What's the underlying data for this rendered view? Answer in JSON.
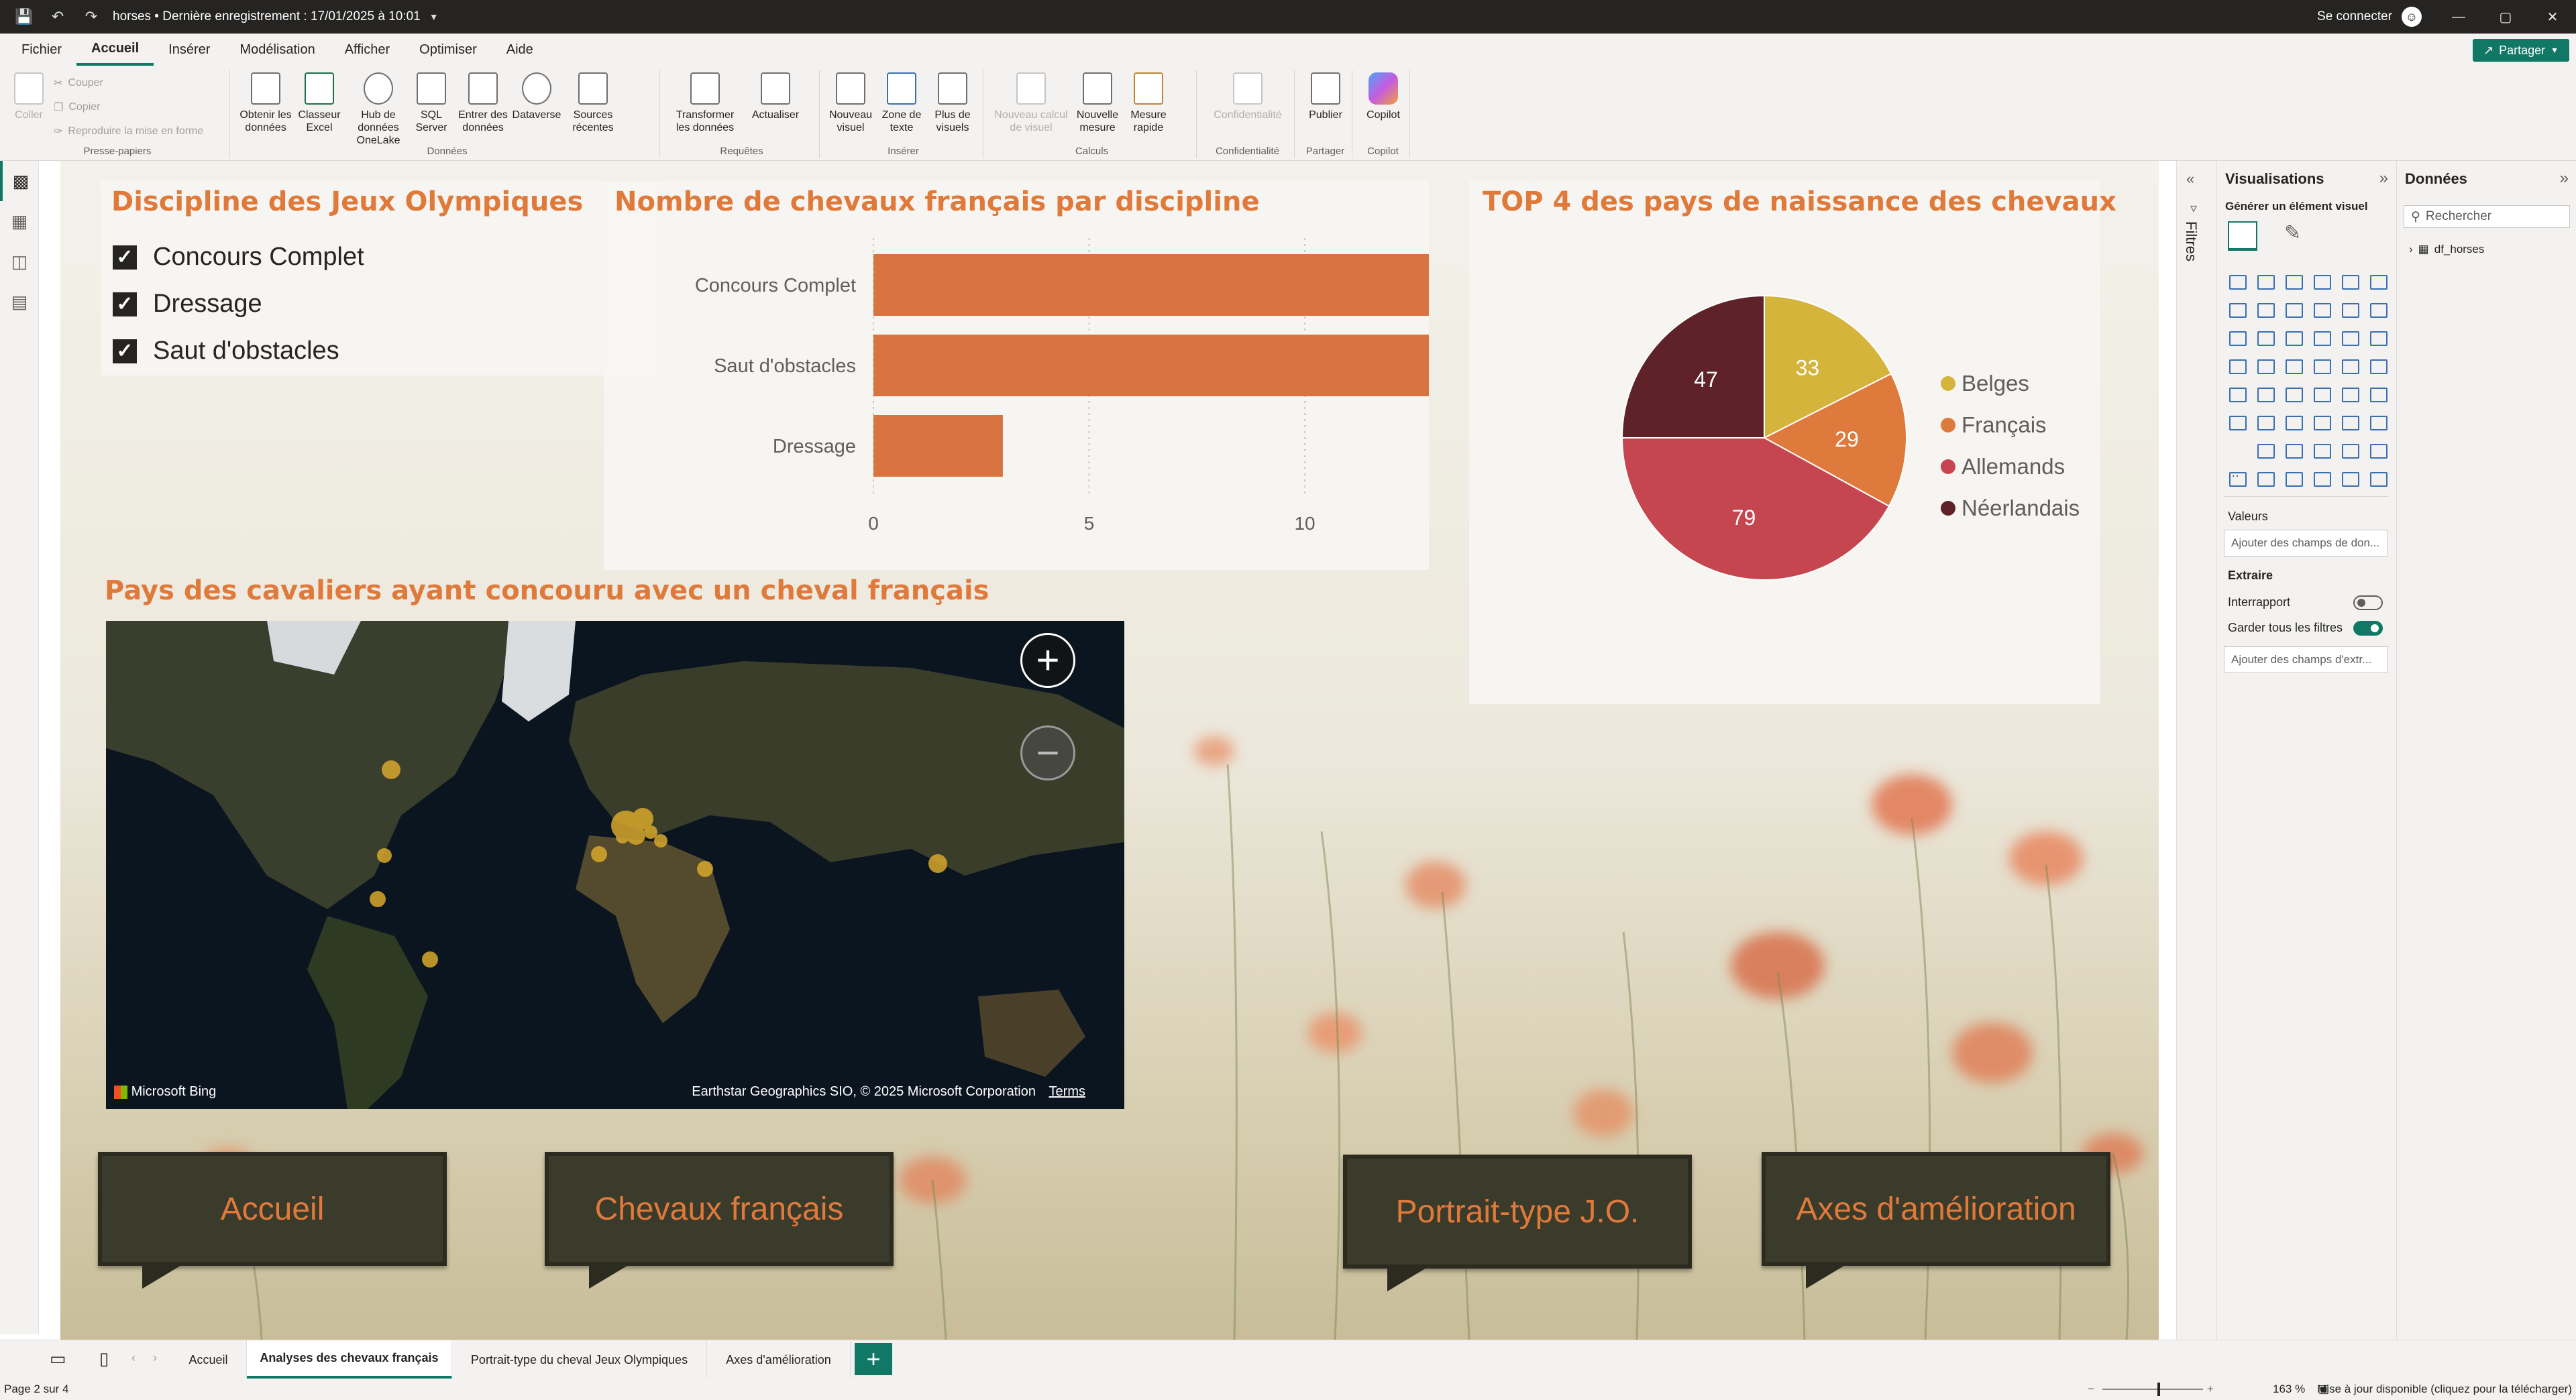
{
  "titlebar": {
    "title": "horses • Dernière enregistrement : 17/01/2025 à 10:01",
    "signin": "Se connecter"
  },
  "menu": {
    "items": [
      "Fichier",
      "Accueil",
      "Insérer",
      "Modélisation",
      "Afficher",
      "Optimiser",
      "Aide"
    ],
    "active": "Accueil",
    "share": "Partager"
  },
  "ribbon": {
    "clipboard": {
      "paste": "Coller",
      "cut": "Couper",
      "copy": "Copier",
      "format_painter": "Reproduire la mise en forme",
      "group": "Presse-papiers"
    },
    "data": {
      "get_data": "Obtenir les données",
      "excel": "Classeur Excel",
      "onelake": "Hub de données OneLake",
      "sql": "SQL Server",
      "enter": "Entrer des données",
      "dataverse": "Dataverse",
      "recent": "Sources récentes",
      "group": "Données"
    },
    "queries": {
      "transform": "Transformer les données",
      "refresh": "Actualiser",
      "group": "Requêtes"
    },
    "insert": {
      "new_visual": "Nouveau visuel",
      "text_box": "Zone de texte",
      "more_visuals": "Plus de visuels",
      "group": "Insérer"
    },
    "calc": {
      "new_calc": "Nouveau calcul de visuel",
      "new_measure": "Nouvelle mesure",
      "quick_measure": "Mesure rapide",
      "group": "Calculs"
    },
    "sensitivity": {
      "label": "Confidentialité",
      "group": "Confidentialité"
    },
    "share": {
      "publish": "Publier",
      "group": "Partager"
    },
    "copilot": {
      "label": "Copilot",
      "group": "Copilot"
    }
  },
  "slicer": {
    "title": "Discipline des Jeux Olympiques",
    "items": [
      {
        "label": "Concours Complet",
        "checked": true
      },
      {
        "label": "Dressage",
        "checked": true
      },
      {
        "label": "Saut d'obstacles",
        "checked": true
      }
    ]
  },
  "chart_data": [
    {
      "type": "bar",
      "orientation": "horizontal",
      "title": "Nombre de chevaux français par discipline",
      "categories": [
        "Concours Complet",
        "Saut d'obstacles",
        "Dressage"
      ],
      "values": [
        13,
        13,
        3
      ],
      "xticks": [
        0,
        5,
        10
      ],
      "xlim": [
        0,
        13
      ],
      "color": "#D9733F",
      "grid": true
    },
    {
      "type": "pie",
      "title": "TOP 4 des pays de naissance des chevaux",
      "labels": [
        "Belges",
        "Français",
        "Allemands",
        "Néerlandais"
      ],
      "values": [
        33,
        29,
        79,
        47
      ],
      "colors": [
        "#D4B43A",
        "#DE7A3C",
        "#C5464F",
        "#5E2228"
      ],
      "legend": "right"
    }
  ],
  "map": {
    "title": "Pays des cavaliers ayant concouru avec un cheval français",
    "bing": "Microsoft Bing",
    "credit": "Earthstar Geographics SIO, © 2025 Microsoft Corporation",
    "terms": "Terms"
  },
  "nav_buttons": [
    "Accueil",
    "Chevaux français",
    "Portrait-type J.O.",
    "Axes d'amélioration"
  ],
  "panes": {
    "filters": "Filtres",
    "viz_title": "Visualisations",
    "viz_subtitle": "Générer un élément visuel",
    "values_label": "Valeurs",
    "values_well": "Ajouter des champs de don...",
    "drill_label": "Extraire",
    "cross_report": "Interrapport",
    "keep_filters": "Garder tous les filtres",
    "drill_well": "Ajouter des champs d'extr...",
    "data_title": "Données",
    "search_placeholder": "Rechercher",
    "table": "df_horses",
    "more": "..."
  },
  "tabs": {
    "pages": [
      "Accueil",
      "Analyses des chevaux français",
      "Portrait-type du cheval Jeux Olympiques",
      "Axes d'amélioration"
    ],
    "active_index": 1,
    "add": "+"
  },
  "status": {
    "page": "Page 2 sur 4",
    "zoom": "163 %",
    "update": "Mise à jour disponible (cliquez pour la télécharger)"
  }
}
